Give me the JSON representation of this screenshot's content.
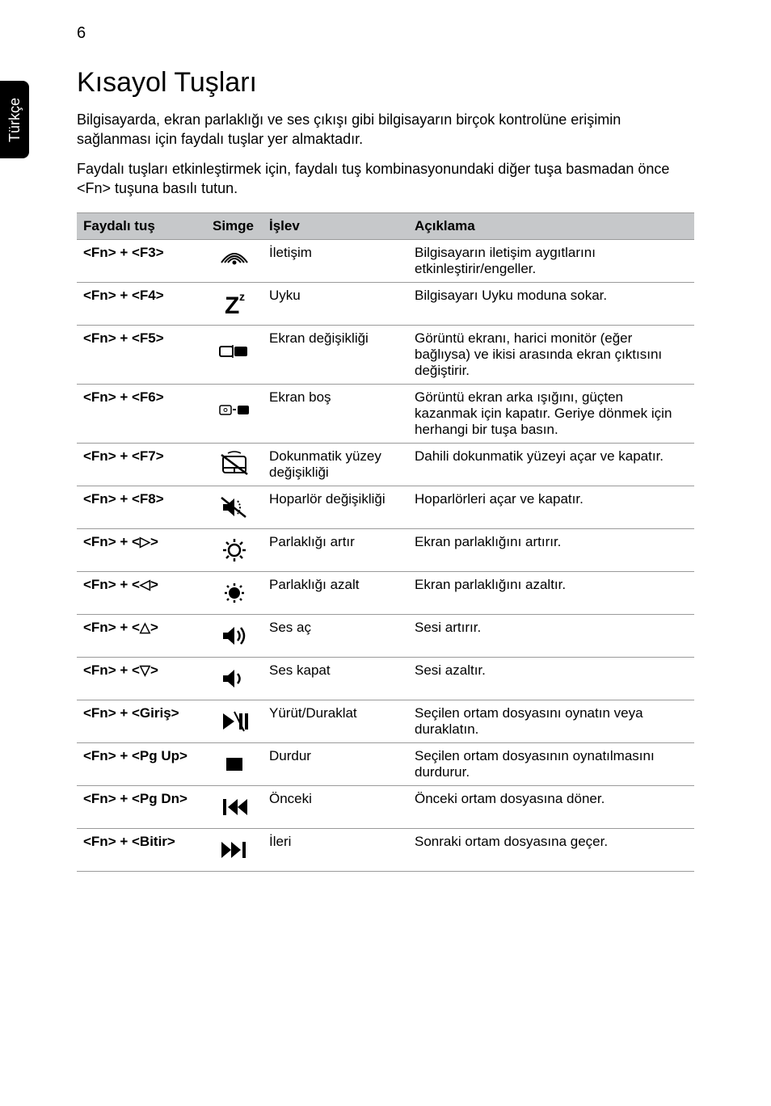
{
  "page_number": "6",
  "side_tab": "Türkçe",
  "title": "Kısayol Tuşları",
  "intro_paragraphs": [
    "Bilgisayarda, ekran parlaklığı ve ses çıkışı gibi bilgisayarın birçok kontrolüne erişimin sağlanması için faydalı tuşlar yer almaktadır.",
    "Faydalı tuşları etkinleştirmek için, faydalı tuş kombinasyonundaki diğer tuşa basmadan önce <Fn> tuşuna basılı tutun."
  ],
  "table": {
    "headers": [
      "Faydalı tuş",
      "Simge",
      "İşlev",
      "Açıklama"
    ],
    "rows": [
      {
        "hotkey": "<Fn> + <F3>",
        "icon": "wifi",
        "func": "İletişim",
        "desc": "Bilgisayarın iletişim aygıtlarını etkinleştirir/engeller."
      },
      {
        "hotkey": "<Fn> + <F4>",
        "icon": "sleep",
        "func": "Uyku",
        "desc": "Bilgisayarı Uyku moduna sokar."
      },
      {
        "hotkey": "<Fn> + <F5>",
        "icon": "display-switch",
        "func": "Ekran değişikliği",
        "desc": "Görüntü ekranı, harici monitör (eğer bağlıysa) ve ikisi arasında ekran çıktısını değiştirir."
      },
      {
        "hotkey": "<Fn> + <F6>",
        "icon": "screen-off",
        "func": "Ekran boş",
        "desc": "Görüntü ekran arka ışığını, güçten kazanmak için kapatır. Geriye dönmek için herhangi bir tuşa basın."
      },
      {
        "hotkey": "<Fn> + <F7>",
        "icon": "touchpad",
        "func": "Dokunmatik yüzey değişikliği",
        "desc": "Dahili dokunmatik yüzeyi açar ve kapatır."
      },
      {
        "hotkey": "<Fn> + <F8>",
        "icon": "speaker-mute",
        "func": "Hoparlör değişikliği",
        "desc": "Hoparlörleri açar ve kapatır."
      },
      {
        "hotkey": "<Fn> + <▷>",
        "icon": "brightness-up",
        "func": "Parlaklığı artır",
        "desc": "Ekran parlaklığını artırır."
      },
      {
        "hotkey": "<Fn> + <◁>",
        "icon": "brightness-down",
        "func": "Parlaklığı azalt",
        "desc": "Ekran parlaklığını azaltır."
      },
      {
        "hotkey": "<Fn> + <△>",
        "icon": "volume-up",
        "func": "Ses aç",
        "desc": "Sesi artırır."
      },
      {
        "hotkey": "<Fn> + <▽>",
        "icon": "volume-down",
        "func": "Ses kapat",
        "desc": "Sesi azaltır."
      },
      {
        "hotkey": "<Fn> + <Giriş>",
        "icon": "play-pause",
        "func": "Yürüt/Duraklat",
        "desc": "Seçilen ortam dosyasını oynatın veya duraklatın."
      },
      {
        "hotkey": "<Fn> + <Pg Up>",
        "icon": "stop",
        "func": "Durdur",
        "desc": "Seçilen ortam dosyasının oynatılmasını durdurur."
      },
      {
        "hotkey": "<Fn> + <Pg Dn>",
        "icon": "prev",
        "func": "Önceki",
        "desc": "Önceki ortam dosyasına döner."
      },
      {
        "hotkey": "<Fn> + <Bitir>",
        "icon": "next",
        "func": "İleri",
        "desc": "Sonraki ortam dosyasına geçer."
      }
    ]
  },
  "colors": {
    "header_bg": "#c6c8ca",
    "border": "#9a9a9a",
    "text": "#000000",
    "bg": "#ffffff"
  }
}
